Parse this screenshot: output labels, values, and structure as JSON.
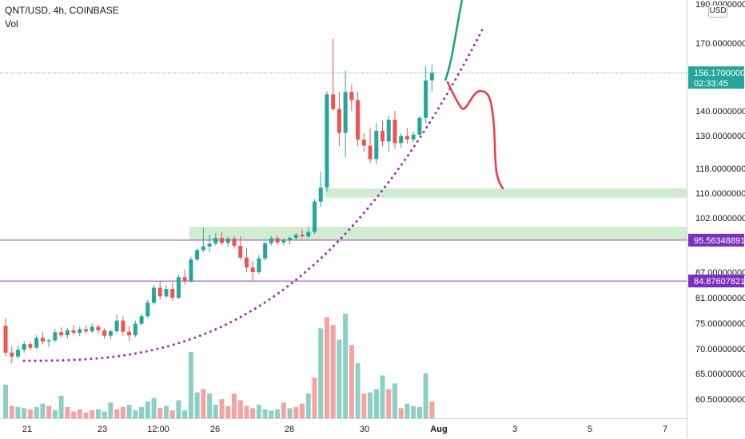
{
  "header": {
    "symbol": "QNT/USD, 4h, COINBASE",
    "volume_label": "Vol"
  },
  "currency_button": "USD",
  "colors": {
    "up": "#26a69a",
    "down": "#ef5350",
    "vol_up": "#8ccfc5",
    "vol_down": "#f4a3a1",
    "zone": "#d2ecd2",
    "level_line": "#8e44ad",
    "level_tag": "#7b2fbe",
    "price_tag": "#26a69a",
    "curve_dots": "#9c27b0",
    "projection_up": "#13a675",
    "projection_down": "#f23645"
  },
  "chart_data": {
    "type": "candlestick",
    "symbol": "QNT/USD",
    "timeframe": "4h",
    "exchange": "COINBASE",
    "price_axis_labels": [
      "190.00000000",
      "170.00000000",
      "140.00000000",
      "130.00000000",
      "118.00000000",
      "110.00000000",
      "102.00000000",
      "87.00000000",
      "81.00000000",
      "75.00000000",
      "70.00000000",
      "65.00000000",
      "60.50000000"
    ],
    "time_axis_labels": [
      "21",
      "23",
      "12:00",
      "26",
      "28",
      "30",
      "Aug",
      "3",
      "5",
      "7"
    ],
    "last_price": "156.17000000",
    "countdown": "02:33:45",
    "horizontal_levels": [
      "95.56348891",
      "84.87607821"
    ],
    "support_zones": [
      [
        108.5,
        111.5
      ],
      [
        95.6,
        99.4
      ]
    ],
    "candles": [
      [
        74.5,
        76.2,
        68.5,
        69.2
      ],
      [
        69.2,
        70.5,
        67.0,
        68.4
      ],
      [
        68.4,
        70.6,
        68.0,
        69.8
      ],
      [
        69.8,
        71.5,
        69.2,
        70.9
      ],
      [
        70.9,
        71.3,
        69.6,
        70.2
      ],
      [
        70.2,
        72.6,
        69.9,
        72.1
      ],
      [
        72.1,
        73.2,
        70.8,
        71.4
      ],
      [
        71.4,
        72.0,
        70.3,
        71.6
      ],
      [
        71.6,
        73.8,
        71.3,
        73.2
      ],
      [
        73.2,
        74.2,
        72.1,
        72.6
      ],
      [
        72.6,
        74.1,
        72.0,
        73.6
      ],
      [
        73.6,
        74.7,
        72.6,
        73.1
      ],
      [
        73.1,
        74.3,
        72.4,
        73.8
      ],
      [
        73.8,
        74.6,
        72.9,
        73.4
      ],
      [
        73.4,
        74.9,
        73.0,
        74.3
      ],
      [
        74.3,
        74.7,
        72.9,
        73.6
      ],
      [
        73.6,
        74.0,
        71.9,
        72.5
      ],
      [
        72.5,
        73.8,
        71.8,
        73.4
      ],
      [
        73.4,
        77.0,
        73.0,
        75.6
      ],
      [
        75.6,
        76.6,
        72.5,
        73.3
      ],
      [
        73.3,
        74.4,
        71.5,
        72.6
      ],
      [
        72.6,
        75.6,
        72.3,
        74.9
      ],
      [
        74.9,
        77.2,
        74.5,
        76.6
      ],
      [
        76.6,
        80.5,
        76.1,
        79.8
      ],
      [
        79.8,
        84.0,
        79.3,
        83.3
      ],
      [
        83.3,
        84.8,
        80.5,
        81.3
      ],
      [
        81.3,
        84.0,
        80.9,
        83.0
      ],
      [
        83.0,
        84.5,
        80.2,
        81.0
      ],
      [
        81.0,
        86.5,
        80.7,
        85.8
      ],
      [
        85.8,
        87.6,
        84.0,
        84.9
      ],
      [
        84.9,
        91.0,
        84.5,
        90.3
      ],
      [
        90.3,
        93.5,
        89.8,
        92.8
      ],
      [
        92.8,
        99.0,
        92.3,
        93.8
      ],
      [
        93.8,
        97.0,
        92.2,
        94.6
      ],
      [
        94.6,
        97.5,
        94.0,
        96.2
      ],
      [
        96.2,
        97.8,
        94.2,
        94.8
      ],
      [
        94.8,
        96.5,
        93.7,
        96.0
      ],
      [
        96.0,
        96.8,
        93.2,
        94.0
      ],
      [
        94.0,
        96.6,
        90.2,
        90.8
      ],
      [
        90.8,
        93.5,
        87.0,
        88.2
      ],
      [
        88.2,
        90.0,
        85.0,
        87.0
      ],
      [
        87.0,
        91.5,
        86.6,
        90.6
      ],
      [
        90.6,
        95.2,
        90.0,
        94.7
      ],
      [
        94.7,
        96.8,
        94.1,
        96.1
      ],
      [
        96.1,
        96.9,
        94.2,
        94.9
      ],
      [
        94.9,
        96.1,
        94.1,
        95.5
      ],
      [
        95.5,
        96.7,
        94.4,
        96.2
      ],
      [
        96.2,
        97.6,
        95.4,
        97.1
      ],
      [
        97.1,
        98.6,
        96.1,
        96.6
      ],
      [
        96.6,
        99.5,
        96.2,
        97.9
      ],
      [
        97.9,
        108.0,
        97.3,
        107.2
      ],
      [
        107.2,
        117.0,
        105.5,
        111.8
      ],
      [
        111.8,
        148.0,
        110.5,
        146.8
      ],
      [
        146.8,
        172.0,
        140.0,
        140.8
      ],
      [
        140.8,
        148.0,
        126.0,
        131.1
      ],
      [
        131.1,
        157.0,
        122.0,
        147.8
      ],
      [
        147.8,
        151.0,
        140.0,
        144.4
      ],
      [
        144.4,
        148.0,
        126.0,
        128.5
      ],
      [
        128.5,
        131.0,
        124.0,
        126.2
      ],
      [
        126.2,
        133.0,
        120.0,
        121.3
      ],
      [
        121.3,
        135.0,
        119.5,
        131.9
      ],
      [
        131.9,
        136.0,
        126.0,
        127.8
      ],
      [
        127.8,
        138.0,
        124.0,
        136.4
      ],
      [
        136.4,
        140.0,
        125.0,
        127.2
      ],
      [
        127.2,
        131.0,
        125.5,
        129.9
      ],
      [
        129.9,
        133.0,
        127.0,
        128.6
      ],
      [
        128.6,
        131.5,
        127.5,
        130.4
      ],
      [
        130.4,
        138.0,
        130.0,
        137.1
      ],
      [
        137.1,
        159.0,
        135.0,
        152.8
      ],
      [
        152.8,
        160.0,
        148.0,
        156.2
      ]
    ],
    "volumes": [
      [
        3.0,
        1
      ],
      [
        1.1,
        0
      ],
      [
        1.0,
        1
      ],
      [
        0.9,
        1
      ],
      [
        0.8,
        0
      ],
      [
        1.0,
        1
      ],
      [
        1.3,
        1
      ],
      [
        1.1,
        0
      ],
      [
        0.7,
        1
      ],
      [
        2.0,
        1
      ],
      [
        1.0,
        0
      ],
      [
        0.6,
        0
      ],
      [
        0.8,
        0
      ],
      [
        0.5,
        0
      ],
      [
        0.7,
        0
      ],
      [
        0.8,
        1
      ],
      [
        0.6,
        1
      ],
      [
        1.4,
        1
      ],
      [
        0.8,
        0
      ],
      [
        1.0,
        0
      ],
      [
        1.2,
        1
      ],
      [
        0.7,
        1
      ],
      [
        1.0,
        1
      ],
      [
        1.5,
        1
      ],
      [
        1.8,
        1
      ],
      [
        0.9,
        0
      ],
      [
        1.1,
        1
      ],
      [
        0.7,
        0
      ],
      [
        1.6,
        1
      ],
      [
        0.7,
        1
      ],
      [
        5.9,
        1
      ],
      [
        2.3,
        1
      ],
      [
        2.6,
        0
      ],
      [
        2.2,
        1
      ],
      [
        1.2,
        1
      ],
      [
        1.7,
        0
      ],
      [
        1.1,
        0
      ],
      [
        2.2,
        0
      ],
      [
        1.6,
        0
      ],
      [
        1.1,
        0
      ],
      [
        0.9,
        0
      ],
      [
        1.2,
        1
      ],
      [
        0.8,
        1
      ],
      [
        0.7,
        1
      ],
      [
        0.8,
        1
      ],
      [
        1.4,
        0
      ],
      [
        0.9,
        1
      ],
      [
        1.0,
        0
      ],
      [
        1.3,
        0
      ],
      [
        2.2,
        1
      ],
      [
        3.6,
        0
      ],
      [
        8.0,
        1
      ],
      [
        9.0,
        0
      ],
      [
        8.3,
        0
      ],
      [
        7.0,
        1
      ],
      [
        9.3,
        1
      ],
      [
        6.5,
        0
      ],
      [
        4.9,
        1
      ],
      [
        2.2,
        0
      ],
      [
        2.3,
        1
      ],
      [
        2.6,
        1
      ],
      [
        3.8,
        1
      ],
      [
        2.6,
        0
      ],
      [
        3.1,
        1
      ],
      [
        0.9,
        0
      ],
      [
        1.3,
        1
      ],
      [
        1.1,
        1
      ],
      [
        1.0,
        1
      ],
      [
        4.0,
        1
      ],
      [
        1.5,
        0
      ]
    ]
  }
}
